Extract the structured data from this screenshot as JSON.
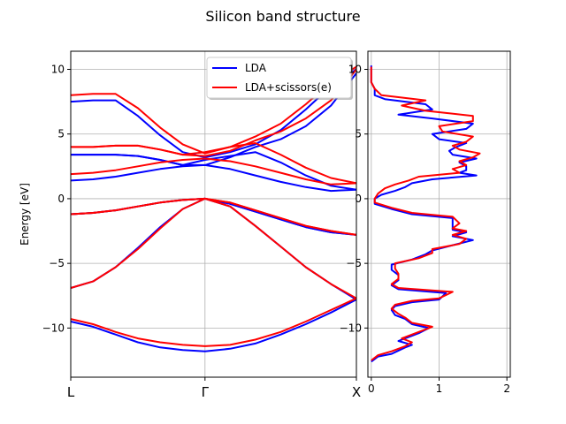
{
  "title": "Silicon band structure",
  "colors": {
    "lda": "#0000ff",
    "scissors": "#ff0000",
    "grid": "#b0b0b0"
  },
  "chart_data": [
    {
      "type": "line",
      "panel": "band-structure",
      "ylabel": "Energy [eV]",
      "ylim": [
        -13.8,
        11.4
      ],
      "yticks": [
        10,
        5,
        0,
        -5,
        -10
      ],
      "xticks": [
        {
          "pos": 0,
          "label": "L"
        },
        {
          "pos": 0.47,
          "label": "Γ"
        },
        {
          "pos": 1,
          "label": "X"
        }
      ],
      "grid": true,
      "legend": {
        "placement": "top-right",
        "entries": [
          "LDA",
          "LDA+scissors(e)"
        ]
      },
      "x": [
        0,
        0.078,
        0.157,
        0.235,
        0.313,
        0.392,
        0.47,
        0.558,
        0.646,
        0.735,
        0.823,
        0.911,
        1.0
      ],
      "series": [
        {
          "name": "LDA",
          "color": "#0000ff",
          "bands": [
            [
              -9.5,
              -9.9,
              -10.5,
              -11.1,
              -11.5,
              -11.7,
              -11.8,
              -11.6,
              -11.2,
              -10.5,
              -9.7,
              -8.8,
              -7.8
            ],
            [
              -6.9,
              -6.4,
              -5.3,
              -3.8,
              -2.2,
              -0.8,
              0.0,
              -0.6,
              -2.1,
              -3.7,
              -5.3,
              -6.6,
              -7.8
            ],
            [
              -1.2,
              -1.1,
              -0.9,
              -0.6,
              -0.3,
              -0.1,
              0.0,
              -0.4,
              -1.0,
              -1.6,
              -2.2,
              -2.6,
              -2.8
            ],
            [
              -1.2,
              -1.1,
              -0.9,
              -0.6,
              -0.3,
              -0.1,
              0.0,
              -0.4,
              -1.0,
              -1.6,
              -2.2,
              -2.6,
              -2.8
            ],
            [
              1.4,
              1.5,
              1.7,
              2.0,
              2.3,
              2.5,
              2.6,
              2.3,
              1.8,
              1.3,
              0.9,
              0.6,
              0.7
            ],
            [
              3.4,
              3.4,
              3.4,
              3.3,
              3.0,
              2.6,
              2.6,
              3.2,
              4.0,
              4.6,
              5.6,
              7.2,
              9.7
            ],
            [
              3.4,
              3.4,
              3.4,
              3.3,
              3.0,
              2.6,
              3.0,
              3.3,
              3.6,
              2.8,
              1.8,
              1.0,
              0.7
            ],
            [
              7.5,
              7.6,
              7.6,
              6.4,
              4.9,
              3.6,
              3.2,
              3.6,
              4.2,
              5.3,
              6.9,
              8.7,
              10.0
            ]
          ]
        },
        {
          "name": "LDA+scissors(e)",
          "color": "#ff0000",
          "bands": [
            [
              -9.3,
              -9.7,
              -10.3,
              -10.8,
              -11.1,
              -11.3,
              -11.4,
              -11.3,
              -10.9,
              -10.3,
              -9.5,
              -8.6,
              -7.7
            ],
            [
              -6.9,
              -6.4,
              -5.3,
              -3.9,
              -2.3,
              -0.8,
              0.0,
              -0.6,
              -2.1,
              -3.7,
              -5.3,
              -6.6,
              -7.7
            ],
            [
              -1.2,
              -1.1,
              -0.9,
              -0.6,
              -0.3,
              -0.1,
              0.0,
              -0.3,
              -0.9,
              -1.5,
              -2.1,
              -2.5,
              -2.8
            ],
            [
              -1.2,
              -1.1,
              -0.9,
              -0.6,
              -0.3,
              -0.1,
              0.0,
              -0.3,
              -0.9,
              -1.5,
              -2.1,
              -2.5,
              -2.8
            ],
            [
              1.9,
              2.0,
              2.2,
              2.5,
              2.8,
              3.0,
              3.1,
              2.9,
              2.5,
              2.0,
              1.5,
              1.1,
              1.2
            ],
            [
              4.0,
              4.0,
              4.1,
              4.1,
              3.8,
              3.4,
              3.3,
              3.7,
              4.5,
              5.2,
              6.2,
              7.6,
              10.0
            ],
            [
              4.0,
              4.0,
              4.1,
              4.1,
              3.8,
              3.4,
              3.6,
              4.0,
              4.3,
              3.4,
              2.4,
              1.6,
              1.2
            ],
            [
              8.0,
              8.1,
              8.1,
              7.0,
              5.5,
              4.2,
              3.5,
              4.0,
              4.8,
              5.8,
              7.3,
              9.0,
              10.2
            ]
          ]
        }
      ]
    },
    {
      "type": "line",
      "panel": "density-of-states",
      "orientation": "horizontal",
      "xlim": [
        -0.05,
        2.05
      ],
      "xticks": [
        0,
        1,
        2
      ],
      "ylim": [
        -13.8,
        11.4
      ],
      "yticks": [
        10,
        5,
        0,
        -5,
        -10
      ],
      "grid": true,
      "series": [
        {
          "name": "LDA",
          "color": "#0000ff",
          "energy": [
            -12.6,
            -12.2,
            -12.0,
            -11.5,
            -11.3,
            -11.0,
            -10.4,
            -10.0,
            -9.7,
            -9.3,
            -9.0,
            -8.6,
            -8.3,
            -8.0,
            -7.8,
            -7.3,
            -7.0,
            -6.7,
            -6.3,
            -5.9,
            -5.5,
            -5.1,
            -4.7,
            -4.3,
            -4.0,
            -3.6,
            -3.2,
            -2.9,
            -2.6,
            -2.4,
            -2.0,
            -1.5,
            -1.2,
            -0.8,
            -0.4,
            0.0,
            0.3,
            0.6,
            0.9,
            1.2,
            1.5,
            1.8,
            2.0,
            2.2,
            2.5,
            2.8,
            3.1,
            3.4,
            3.7,
            4.0,
            4.3,
            4.6,
            5.0,
            5.4,
            5.8,
            6.2,
            6.5,
            6.9,
            7.3,
            7.7,
            8.0,
            8.5,
            9.0,
            9.5,
            10.0,
            10.3
          ],
          "dos": [
            0.0,
            0.1,
            0.3,
            0.5,
            0.6,
            0.4,
            0.7,
            0.85,
            0.6,
            0.5,
            0.35,
            0.3,
            0.35,
            0.6,
            1.0,
            1.1,
            0.4,
            0.3,
            0.4,
            0.4,
            0.3,
            0.3,
            0.6,
            0.8,
            0.9,
            1.2,
            1.5,
            1.2,
            1.4,
            1.2,
            1.2,
            1.2,
            0.6,
            0.3,
            0.05,
            0.05,
            0.15,
            0.35,
            0.5,
            0.6,
            0.9,
            1.55,
            1.3,
            1.4,
            1.4,
            1.3,
            1.55,
            1.2,
            1.15,
            1.25,
            1.4,
            1.0,
            0.9,
            1.4,
            1.5,
            0.9,
            0.4,
            0.9,
            0.8,
            0.2,
            0.05,
            0.05,
            0.0,
            0.0,
            0.0,
            0.0
          ]
        },
        {
          "name": "LDA+scissors(e)",
          "color": "#ff0000",
          "energy": [
            -12.5,
            -12.1,
            -11.8,
            -11.4,
            -11.1,
            -10.8,
            -10.3,
            -9.9,
            -9.6,
            -9.2,
            -8.9,
            -8.5,
            -8.2,
            -7.9,
            -7.7,
            -7.2,
            -6.9,
            -6.6,
            -6.2,
            -5.8,
            -5.4,
            -5.0,
            -4.6,
            -4.2,
            -3.9,
            -3.5,
            -3.1,
            -2.8,
            -2.5,
            -2.3,
            -1.9,
            -1.4,
            -1.1,
            -0.7,
            -0.3,
            0.0,
            0.4,
            0.8,
            1.1,
            1.4,
            1.7,
            2.0,
            2.3,
            2.6,
            2.9,
            3.2,
            3.5,
            3.8,
            4.1,
            4.4,
            4.8,
            5.2,
            5.6,
            6.0,
            6.4,
            6.8,
            7.2,
            7.6,
            8.0,
            8.5,
            9.0,
            9.5,
            10.0,
            10.2
          ],
          "dos": [
            0.0,
            0.1,
            0.3,
            0.5,
            0.6,
            0.45,
            0.7,
            0.9,
            0.6,
            0.5,
            0.4,
            0.3,
            0.35,
            0.6,
            1.0,
            1.2,
            0.4,
            0.3,
            0.4,
            0.4,
            0.35,
            0.35,
            0.7,
            0.9,
            0.9,
            1.3,
            1.4,
            1.2,
            1.4,
            1.2,
            1.3,
            1.2,
            0.6,
            0.3,
            0.05,
            0.05,
            0.1,
            0.2,
            0.35,
            0.55,
            0.7,
            1.3,
            1.2,
            1.4,
            1.3,
            1.5,
            1.6,
            1.3,
            1.2,
            1.4,
            1.5,
            1.05,
            1.0,
            1.5,
            1.5,
            0.8,
            0.45,
            0.8,
            0.15,
            0.05,
            0.0,
            0.0,
            0.0,
            0.0
          ]
        }
      ]
    }
  ]
}
